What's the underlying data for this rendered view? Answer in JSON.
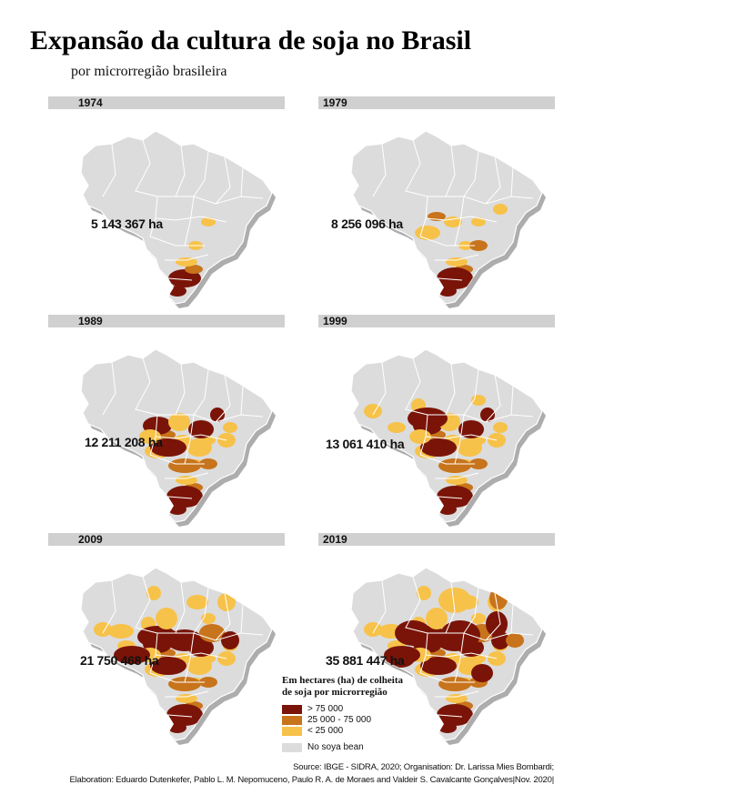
{
  "title": "Expansão da cultura de soja no Brasil",
  "subtitle": "por microrregião brasileira",
  "colors": {
    "high": "#7a1408",
    "mid": "#c8741c",
    "low": "#f7c24a",
    "none": "#dcdcdc",
    "yearbar": "#d0d0d0"
  },
  "panels": [
    {
      "year": "1974",
      "area_label": "5 143 367 ha",
      "stage": 0
    },
    {
      "year": "1979",
      "area_label": "8 256 096 ha",
      "stage": 1
    },
    {
      "year": "1989",
      "area_label": "12 211 208 ha",
      "stage": 2
    },
    {
      "year": "1999",
      "area_label": "13 061 410 ha",
      "stage": 3
    },
    {
      "year": "2009",
      "area_label": "21 750 468 ha",
      "stage": 4
    },
    {
      "year": "2019",
      "area_label": "35 881 447 ha",
      "stage": 5
    }
  ],
  "legend": {
    "title_line1": "Em hectares (ha) de colheita",
    "title_line2": "de soja por microrregião",
    "items": [
      {
        "label": "> 75 000",
        "color": "#7a1408"
      },
      {
        "label": "25 000 - 75 000",
        "color": "#c8741c"
      },
      {
        "label": "< 25 000",
        "color": "#f7c24a"
      },
      {
        "label": "No soya bean",
        "color": "#dcdcdc"
      }
    ]
  },
  "credits": {
    "line1": "Source: IBGE - SIDRA, 2020; Organisation: Dr. Larissa Mies Bombardi;",
    "line2": "Elaboration: Eduardo Dutenkefer, Pablo L. M. Nepomuceno, Paulo R. A. de Moraes and Valdeir S. Cavalcante Gonçalves|Nov. 2020|"
  }
}
